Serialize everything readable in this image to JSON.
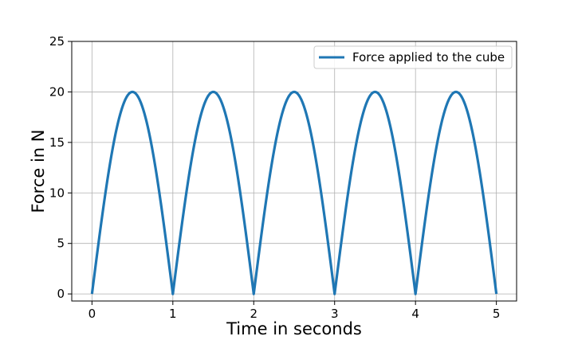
{
  "chart_data": {
    "type": "line",
    "title": "",
    "xlabel": "Time in seconds",
    "ylabel": "Force in N",
    "xlim": [
      -0.25,
      5.25
    ],
    "ylim": [
      -0.7,
      25
    ],
    "xticks": [
      "0",
      "1",
      "2",
      "3",
      "4",
      "5"
    ],
    "yticks": [
      "0",
      "5",
      "10",
      "15",
      "20",
      "25"
    ],
    "grid": true,
    "legend_position": "top-right",
    "series": [
      {
        "name": "Force applied to the cube",
        "color": "#1f77b4",
        "function": "20*|sin(pi*t)|",
        "x": [
          0,
          0.1,
          0.2,
          0.3,
          0.4,
          0.5,
          0.6,
          0.7,
          0.8,
          0.9,
          1.0,
          1.1,
          1.2,
          1.3,
          1.4,
          1.5,
          1.6,
          1.7,
          1.8,
          1.9,
          2.0,
          2.1,
          2.2,
          2.3,
          2.4,
          2.5,
          2.6,
          2.7,
          2.8,
          2.9,
          3.0,
          3.1,
          3.2,
          3.3,
          3.4,
          3.5,
          3.6,
          3.7,
          3.8,
          3.9,
          4.0,
          4.1,
          4.2,
          4.3,
          4.4,
          4.5,
          4.6,
          4.7,
          4.8,
          4.9,
          5.0
        ],
        "y": [
          0,
          6.18,
          11.76,
          16.18,
          19.02,
          20,
          19.02,
          16.18,
          11.76,
          6.18,
          0,
          6.18,
          11.76,
          16.18,
          19.02,
          20,
          19.02,
          16.18,
          11.76,
          6.18,
          0,
          6.18,
          11.76,
          16.18,
          19.02,
          20,
          19.02,
          16.18,
          11.76,
          6.18,
          0,
          6.18,
          11.76,
          16.18,
          19.02,
          20,
          19.02,
          16.18,
          11.76,
          6.18,
          0,
          6.18,
          11.76,
          16.18,
          19.02,
          20,
          19.02,
          16.18,
          11.76,
          6.18,
          0
        ]
      }
    ]
  }
}
